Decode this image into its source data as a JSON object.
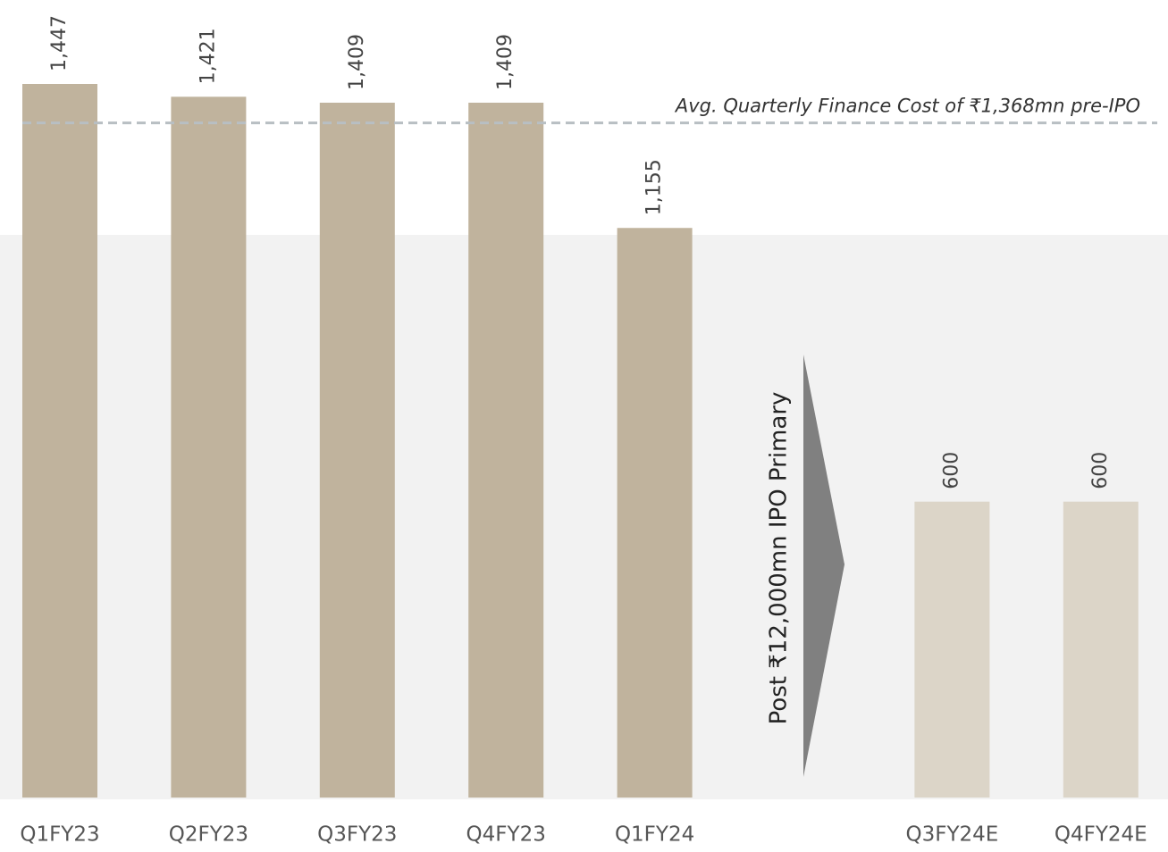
{
  "chart_data": {
    "type": "bar",
    "categories": [
      "Q1FY23",
      "Q2FY23",
      "Q3FY23",
      "Q4FY23",
      "Q1FY24",
      null,
      "Q3FY24E",
      "Q4FY24E"
    ],
    "values": [
      1447,
      1421,
      1409,
      1409,
      1155,
      null,
      600,
      600
    ],
    "value_labels": [
      "1,447",
      "1,421",
      "1,409",
      "1,409",
      "1,155",
      null,
      "600",
      "600"
    ],
    "colors": [
      "#c0b39d",
      "#c0b39d",
      "#c0b39d",
      "#c0b39d",
      "#c0b39d",
      null,
      "#dcd5c8",
      "#dcd5c8"
    ],
    "reference_line": {
      "value": 1368,
      "label": "Avg. Quarterly Finance Cost of ₹1,368mn pre-IPO",
      "color": "#b8bfc3"
    },
    "annotation": "Post ₹12,000mn IPO Primary"
  }
}
